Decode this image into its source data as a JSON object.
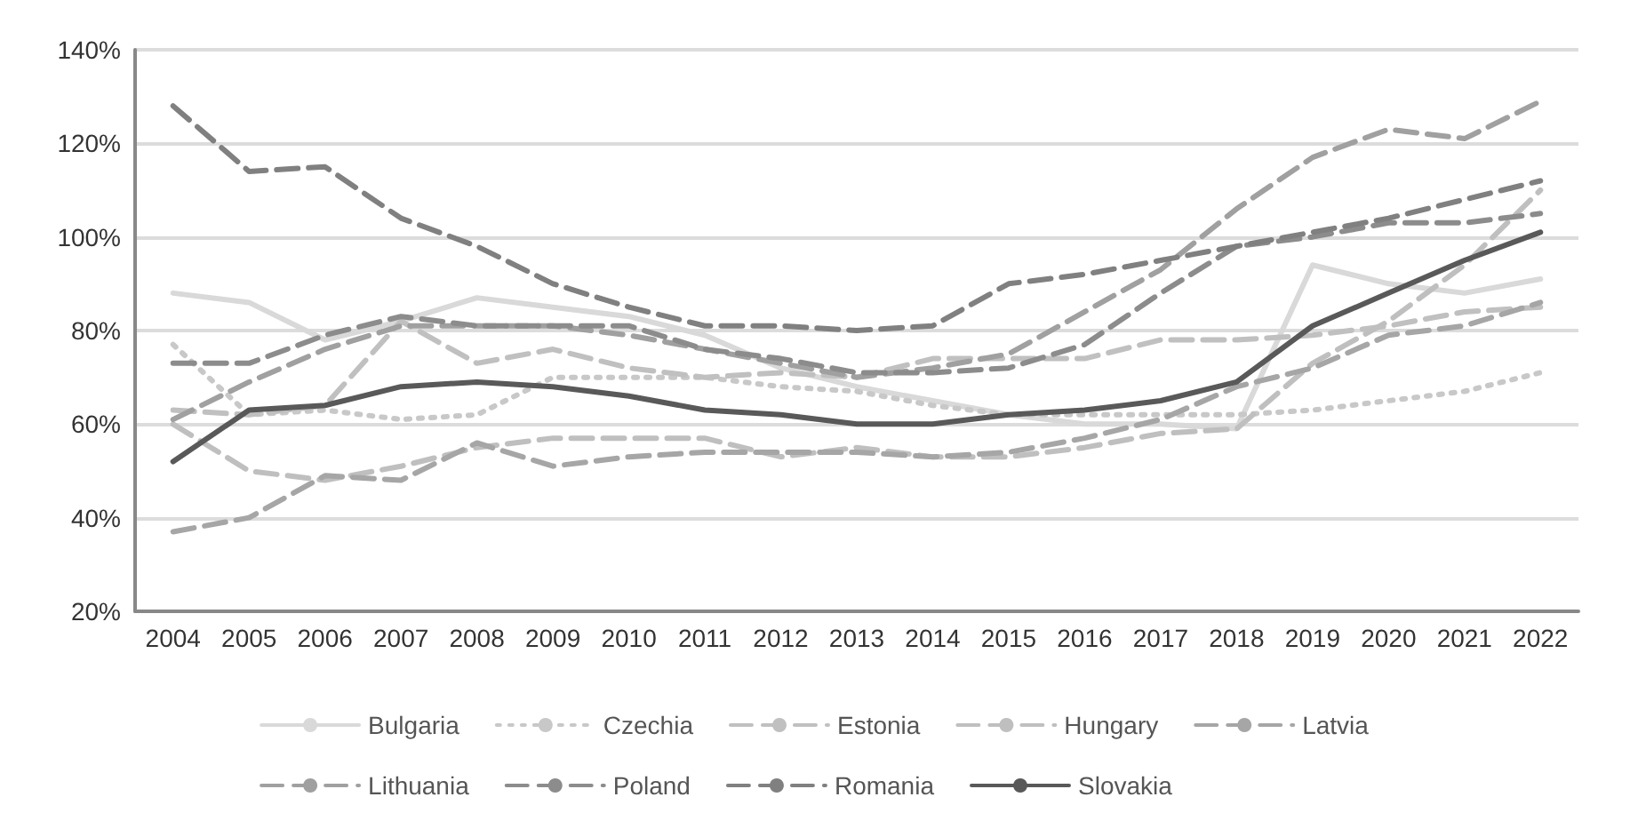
{
  "chart_data": {
    "type": "line",
    "categories": [
      "2004",
      "2005",
      "2006",
      "2007",
      "2008",
      "2009",
      "2010",
      "2011",
      "2012",
      "2013",
      "2014",
      "2015",
      "2016",
      "2017",
      "2018",
      "2019",
      "2020",
      "2021",
      "2022"
    ],
    "series": [
      {
        "name": "Bulgaria",
        "color": "#d9d9d9",
        "line_style": "solid",
        "values": [
          88,
          86,
          78,
          82,
          87,
          85,
          83,
          79,
          72,
          68,
          65,
          62,
          60,
          60,
          59,
          94,
          90,
          88,
          91
        ]
      },
      {
        "name": "Czechia",
        "color": "#c8c8c8",
        "line_style": "dotted",
        "values": [
          77,
          62,
          63,
          61,
          62,
          70,
          70,
          70,
          68,
          67,
          64,
          62,
          62,
          62,
          62,
          63,
          65,
          67,
          71
        ]
      },
      {
        "name": "Estonia",
        "color": "#c0c0c0",
        "line_style": "dashed",
        "values": [
          63,
          62,
          64,
          82,
          73,
          76,
          72,
          70,
          71,
          70,
          74,
          74,
          74,
          78,
          78,
          79,
          81,
          84,
          85
        ]
      },
      {
        "name": "Hungary",
        "color": "#bfbfbf",
        "line_style": "dashed",
        "values": [
          60,
          50,
          48,
          51,
          55,
          57,
          57,
          57,
          53,
          55,
          53,
          53,
          55,
          58,
          59,
          73,
          82,
          94,
          110
        ]
      },
      {
        "name": "Latvia",
        "color": "#a6a6a6",
        "line_style": "dashed",
        "values": [
          37,
          40,
          49,
          48,
          56,
          51,
          53,
          54,
          54,
          54,
          53,
          54,
          57,
          61,
          68,
          72,
          79,
          81,
          86
        ]
      },
      {
        "name": "Lithuania",
        "color": "#a0a0a0",
        "line_style": "dashed",
        "values": [
          61,
          69,
          76,
          81,
          81,
          81,
          79,
          76,
          73,
          70,
          72,
          75,
          84,
          93,
          106,
          117,
          123,
          121,
          129
        ]
      },
      {
        "name": "Poland",
        "color": "#8c8c8c",
        "line_style": "dashed",
        "values": [
          73,
          73,
          79,
          83,
          81,
          81,
          81,
          76,
          74,
          71,
          71,
          72,
          77,
          88,
          98,
          100,
          103,
          103,
          105
        ]
      },
      {
        "name": "Romania",
        "color": "#808080",
        "line_style": "dashed",
        "values": [
          128,
          114,
          115,
          104,
          98,
          90,
          85,
          81,
          81,
          80,
          81,
          90,
          92,
          95,
          98,
          101,
          104,
          108,
          112
        ]
      },
      {
        "name": "Slovakia",
        "color": "#595959",
        "line_style": "solid",
        "values": [
          52,
          63,
          64,
          68,
          69,
          68,
          66,
          63,
          62,
          60,
          60,
          62,
          63,
          65,
          69,
          81,
          88,
          95,
          101
        ]
      }
    ],
    "ylim": [
      20,
      140
    ],
    "yticks": [
      {
        "value": 20,
        "label": "20%"
      },
      {
        "value": 40,
        "label": "40%"
      },
      {
        "value": 60,
        "label": "60%"
      },
      {
        "value": 80,
        "label": "80%"
      },
      {
        "value": 100,
        "label": "100%"
      },
      {
        "value": 120,
        "label": "120%"
      },
      {
        "value": 140,
        "label": "140%"
      }
    ],
    "grid": "y",
    "legend": "bottom",
    "marker": "none"
  }
}
